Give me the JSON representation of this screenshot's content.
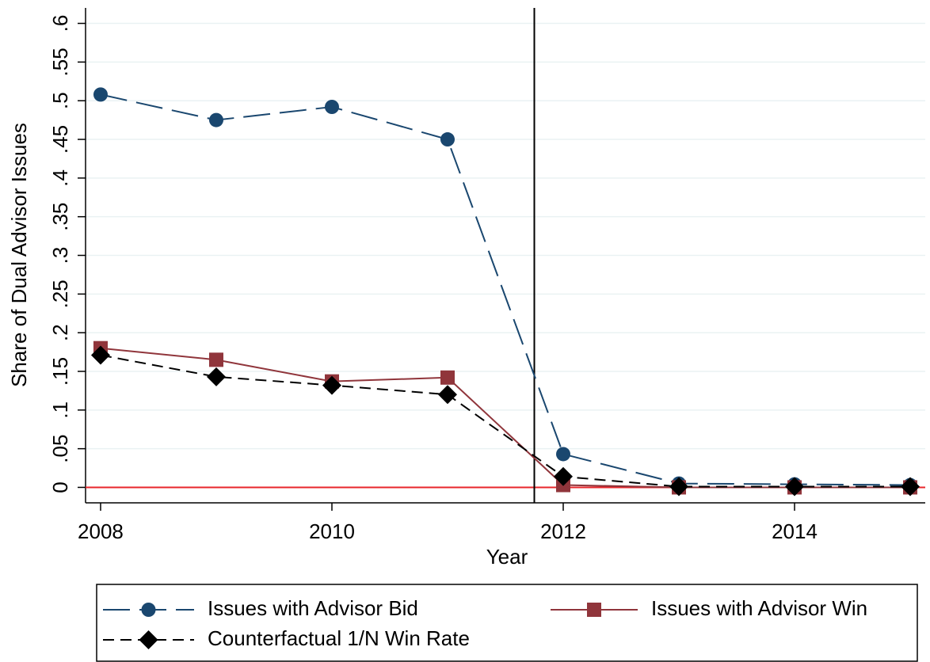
{
  "chart_data": {
    "type": "line",
    "x_label": "Year",
    "y_label": "Share of Dual Advisor Issues",
    "x": [
      2008,
      2009,
      2010,
      2011,
      2012,
      2013,
      2014,
      2015
    ],
    "series": [
      {
        "name": "Issues with Advisor Bid",
        "color": "#1a476f",
        "marker": "circle",
        "dash": "long",
        "values": [
          0.508,
          0.475,
          0.492,
          0.45,
          0.043,
          0.005,
          0.004,
          0.003
        ]
      },
      {
        "name": "Issues with Advisor Win",
        "color": "#90353b",
        "marker": "square",
        "dash": "solid",
        "values": [
          0.18,
          0.165,
          0.137,
          0.142,
          0.003,
          0,
          0,
          0
        ]
      },
      {
        "name": "Counterfactual 1/N Win Rate",
        "color": "#000000",
        "marker": "diamond",
        "dash": "short",
        "values": [
          0.171,
          0.143,
          0.132,
          0.12,
          0.014,
          0.001,
          0.001,
          0.001
        ]
      }
    ],
    "xlim": [
      2007.87,
      2015.13
    ],
    "xticks": [
      2008,
      2010,
      2012,
      2014
    ],
    "ylim": [
      -0.02,
      0.62
    ],
    "yticks": [
      0,
      {
        "value": 0.05,
        "label": ".05"
      },
      {
        "value": 0.1,
        "label": ".1"
      },
      {
        "value": 0.15,
        "label": ".15"
      },
      {
        "value": 0.2,
        "label": ".2"
      },
      {
        "value": 0.25,
        "label": ".25"
      },
      {
        "value": 0.3,
        "label": ".3"
      },
      {
        "value": 0.35,
        "label": ".35"
      },
      {
        "value": 0.4,
        "label": ".4"
      },
      {
        "value": 0.45,
        "label": ".45"
      },
      {
        "value": 0.5,
        "label": ".5"
      },
      {
        "value": 0.55,
        "label": ".55"
      },
      {
        "value": 0.6,
        "label": ".6"
      }
    ],
    "grid": true,
    "vline": {
      "value": 2011.75,
      "color": "#000000"
    },
    "hline": {
      "value": 0,
      "color": "#e8262b"
    },
    "legend": "bottom"
  }
}
